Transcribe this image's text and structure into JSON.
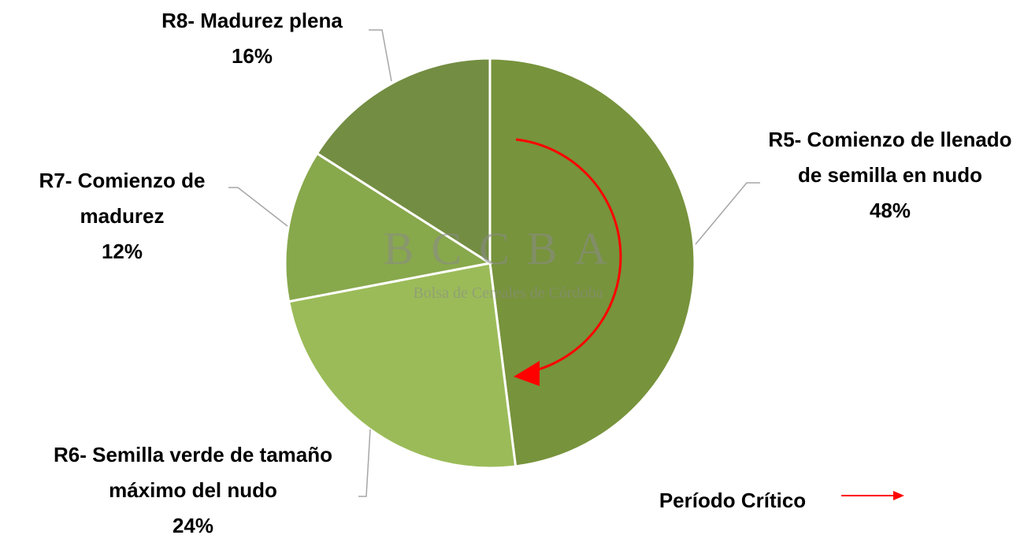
{
  "chart_data": {
    "type": "pie",
    "categories": [
      "R5- Comienzo de llenado de semilla en nudo",
      "R6- Semilla verde de tamaño máximo del nudo",
      "R7- Comienzo de madurez",
      "R8- Madurez plena"
    ],
    "values": [
      48,
      24,
      12,
      16
    ],
    "value_labels": [
      "48%",
      "24%",
      "12%",
      "16%"
    ],
    "colors": [
      "#77933c",
      "#9bbb59",
      "#88a84c",
      "#738d42"
    ],
    "watermark": "BCCBA",
    "watermark_subtitle": "Bolsa de Cereales de Córdoba",
    "annotation": "Período Crítico",
    "annotation_color": "#ff0000"
  }
}
